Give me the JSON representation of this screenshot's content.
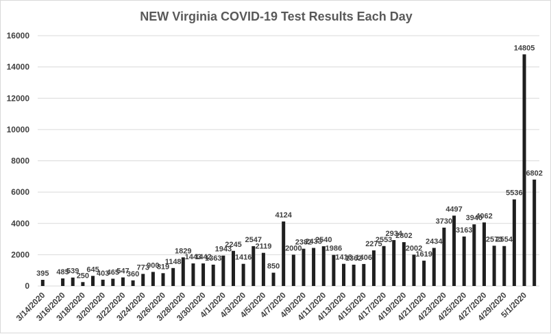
{
  "chart_data": {
    "type": "bar",
    "title": "NEW Virginia COVID-19 Test Results Each Day",
    "xlabel": "",
    "ylabel": "",
    "ylim": [
      0,
      16000
    ],
    "yticks": [
      0,
      2000,
      4000,
      6000,
      8000,
      10000,
      12000,
      14000,
      16000
    ],
    "grid": true,
    "legend": "none",
    "bar_color": "#1f1f1f",
    "categories": [
      "3/14/2020",
      "3/15/2020",
      "3/16/2020",
      "3/17/2020",
      "3/18/2020",
      "3/19/2020",
      "3/20/2020",
      "3/21/2020",
      "3/22/2020",
      "3/23/2020",
      "3/24/2020",
      "3/25/2020",
      "3/26/2020",
      "3/27/2020",
      "3/28/2020",
      "3/29/2020",
      "3/30/2020",
      "3/31/2020",
      "4/1/2020",
      "4/2/2020",
      "4/3/2020",
      "4/4/2020",
      "4/5/2020",
      "4/6/2020",
      "4/7/2020",
      "4/8/2020",
      "4/9/2020",
      "4/10/2020",
      "4/11/2020",
      "4/12/2020",
      "4/13/2020",
      "4/14/2020",
      "4/15/2020",
      "4/16/2020",
      "4/17/2020",
      "4/18/2020",
      "4/19/2020",
      "4/20/2020",
      "4/21/2020",
      "4/22/2020",
      "4/23/2020",
      "4/24/2020",
      "4/25/2020",
      "4/26/2020",
      "4/27/2020",
      "4/28/2020",
      "4/29/2020",
      "4/30/2020",
      "5/1/2020",
      "5/2/2020"
    ],
    "x_tick_labels": [
      "3/14/2020",
      "3/16/2020",
      "3/18/2020",
      "3/20/2020",
      "3/22/2020",
      "3/24/2020",
      "3/26/2020",
      "3/28/2020",
      "3/30/2020",
      "4/1/2020",
      "4/3/2020",
      "4/5/2020",
      "4/7/2020",
      "4/9/2020",
      "4/11/2020",
      "4/13/2020",
      "4/15/2020",
      "4/17/2020",
      "4/19/2020",
      "4/21/2020",
      "4/23/2020",
      "4/25/2020",
      "4/27/2020",
      "4/29/2020",
      "5/1/2020"
    ],
    "values": [
      395,
      0,
      485,
      539,
      250,
      645,
      403,
      465,
      547,
      360,
      773,
      900,
      819,
      1148,
      1829,
      1443,
      1442,
      1363,
      1943,
      2245,
      1416,
      2547,
      2119,
      850,
      4124,
      2000,
      2382,
      2433,
      2540,
      1986,
      1416,
      1362,
      1406,
      2275,
      2553,
      2934,
      2802,
      2002,
      1619,
      2434,
      3730,
      4497,
      3163,
      3940,
      4062,
      2573,
      2554,
      5536,
      14805,
      6802
    ],
    "data_labels": [
      "395",
      "",
      "485",
      "539",
      "250",
      "645",
      "403",
      "465",
      "547",
      "360",
      "773",
      "900",
      "819",
      "1148",
      "1829",
      "1443",
      "1442",
      "1363",
      "1943",
      "2245",
      "1416",
      "2547",
      "2119",
      "850",
      "4124",
      "2000",
      "2382",
      "2433",
      "2540",
      "1986",
      "1416",
      "1362",
      "1406",
      "2275",
      "2553",
      "2934",
      "2802",
      "2002",
      "1619",
      "2434",
      "3730",
      "4497",
      "3163",
      "3940",
      "4062",
      "2573",
      "2554",
      "5536",
      "14805",
      "6802"
    ]
  }
}
